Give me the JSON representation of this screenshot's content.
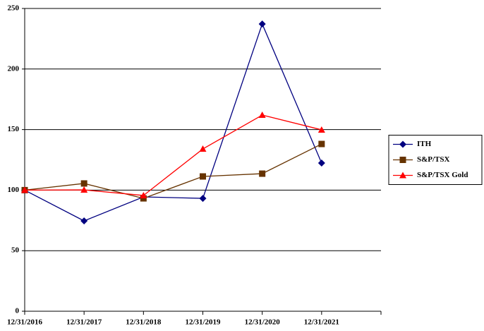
{
  "chart_data": {
    "type": "line",
    "categories": [
      "12/31/2016",
      "12/31/2017",
      "12/31/2018",
      "12/31/2019",
      "12/31/2020",
      "12/31/2021"
    ],
    "series": [
      {
        "name": "ITH",
        "color": "#000080",
        "marker": "diamond",
        "values": [
          100,
          74.6,
          94.4,
          93.2,
          237.2,
          122.4
        ]
      },
      {
        "name": "S&P/TSX",
        "color": "#663300",
        "marker": "square",
        "values": [
          100,
          105.5,
          93.2,
          111.3,
          113.6,
          138.1
        ]
      },
      {
        "name": "S&P/TSX Gold",
        "color": "#ff0000",
        "marker": "triangle",
        "values": [
          100,
          100.2,
          95.6,
          134,
          162,
          149.8
        ]
      }
    ],
    "ylim": [
      0,
      250
    ],
    "yticks": [
      0,
      50,
      100,
      150,
      200,
      250
    ],
    "grid": true,
    "legend": "right"
  }
}
